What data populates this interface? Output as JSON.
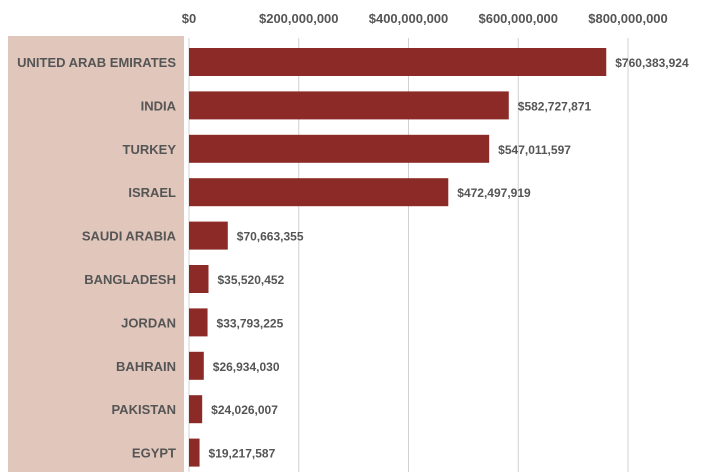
{
  "chart_data": {
    "type": "bar",
    "orientation": "horizontal",
    "title": "",
    "xlabel": "",
    "ylabel": "",
    "categories": [
      "UNITED ARAB EMIRATES",
      "INDIA",
      "TURKEY",
      "ISRAEL",
      "SAUDI ARABIA",
      "BANGLADESH",
      "JORDAN",
      "BAHRAIN",
      "PAKISTAN",
      "EGYPT"
    ],
    "values": [
      760383924,
      582727871,
      547011597,
      472497919,
      70663355,
      35520452,
      33793225,
      26934030,
      24026007,
      19217587
    ],
    "value_labels": [
      "$760,383,924",
      "$582,727,871",
      "$547,011,597",
      "$472,497,919",
      "$70,663,355",
      "$35,520,452",
      "$33,793,225",
      "$26,934,030",
      "$24,026,007",
      "$19,217,587"
    ],
    "x_ticks": [
      0,
      200000000,
      400000000,
      600000000,
      800000000
    ],
    "x_tick_labels": [
      "$0",
      "$200,000,000",
      "$400,000,000",
      "$600,000,000",
      "$800,000,000"
    ],
    "xlim": [
      0,
      800000000
    ],
    "grid": true,
    "axis_position": "top",
    "legend": "none",
    "colors": {
      "bar": "#8b2a26",
      "label_panel": "#e0c6bb",
      "text": "#555555",
      "grid": "#d0d0d0"
    }
  }
}
